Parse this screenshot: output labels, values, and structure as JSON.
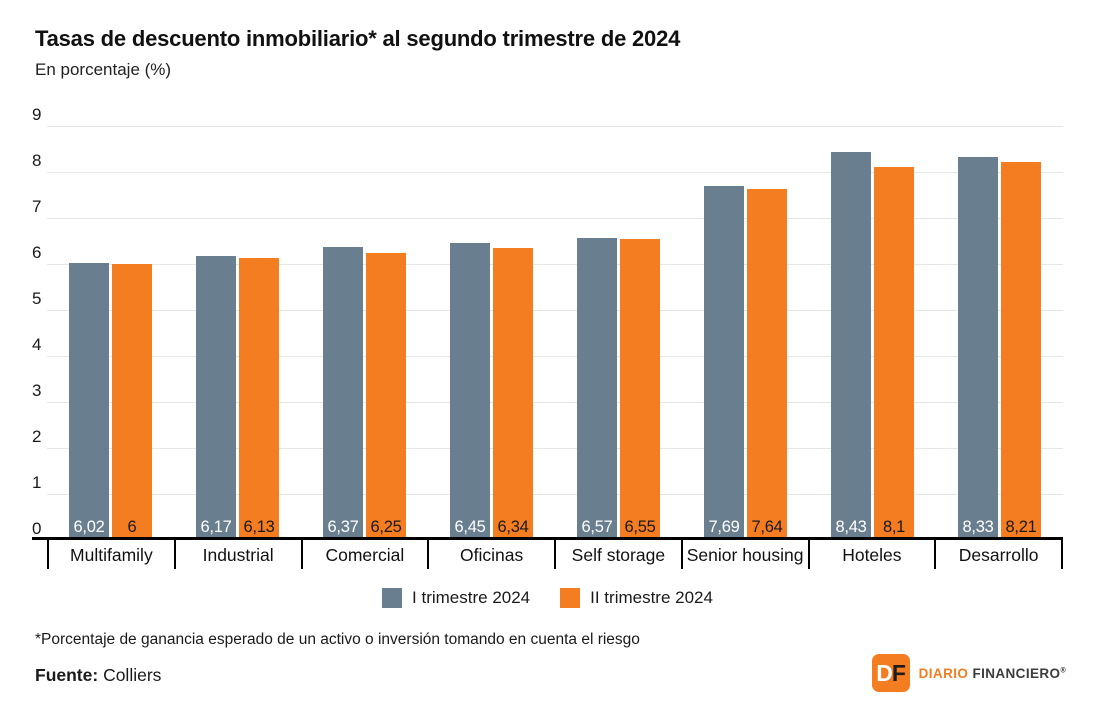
{
  "title": "Tasas de descuento inmobiliario* al segundo trimestre de 2024",
  "subtitle": "En porcentaje (%)",
  "colors": {
    "series1": "#697f90",
    "series2": "#f47c21",
    "grid": "#e6e6e3",
    "axis": "#000000",
    "value_on_series1": "#ffffff",
    "value_on_series2": "#1a1a1a"
  },
  "chart_data": {
    "type": "bar",
    "title": "Tasas de descuento inmobiliario* al segundo trimestre de 2024",
    "subtitle": "En porcentaje (%)",
    "categories": [
      "Multifamily",
      "Industrial",
      "Comercial",
      "Oficinas",
      "Self storage",
      "Senior housing",
      "Hoteles",
      "Desarrollo"
    ],
    "series": [
      {
        "name": "I trimestre 2024",
        "color_key": "series1",
        "values": [
          6.02,
          6.17,
          6.37,
          6.45,
          6.57,
          7.69,
          8.43,
          8.33
        ],
        "labels": [
          "6,02",
          "6,17",
          "6,37",
          "6,45",
          "6,57",
          "7,69",
          "8,43",
          "8,33"
        ]
      },
      {
        "name": "II trimestre 2024",
        "color_key": "series2",
        "values": [
          6.0,
          6.13,
          6.25,
          6.34,
          6.55,
          7.64,
          8.1,
          8.21
        ],
        "labels": [
          "6",
          "6,13",
          "6,25",
          "6,34",
          "6,55",
          "7,64",
          "8,1",
          "8,21"
        ]
      }
    ],
    "xlabel": "",
    "ylabel": "En porcentaje (%)",
    "ylim": [
      0,
      9
    ],
    "yticks": [
      0,
      1,
      2,
      3,
      4,
      5,
      6,
      7,
      8,
      9
    ],
    "grid": true,
    "legend_position": "bottom"
  },
  "footnote": "*Porcentaje de ganancia esperado de un activo o inversión tomando en cuenta el riesgo",
  "source": {
    "label": "Fuente:",
    "value": " Colliers"
  },
  "logo": {
    "monogram_d": "D",
    "monogram_f": "F",
    "name_primary": "DIARIO ",
    "name_secondary": "FINANCIERO",
    "registered": "®"
  }
}
